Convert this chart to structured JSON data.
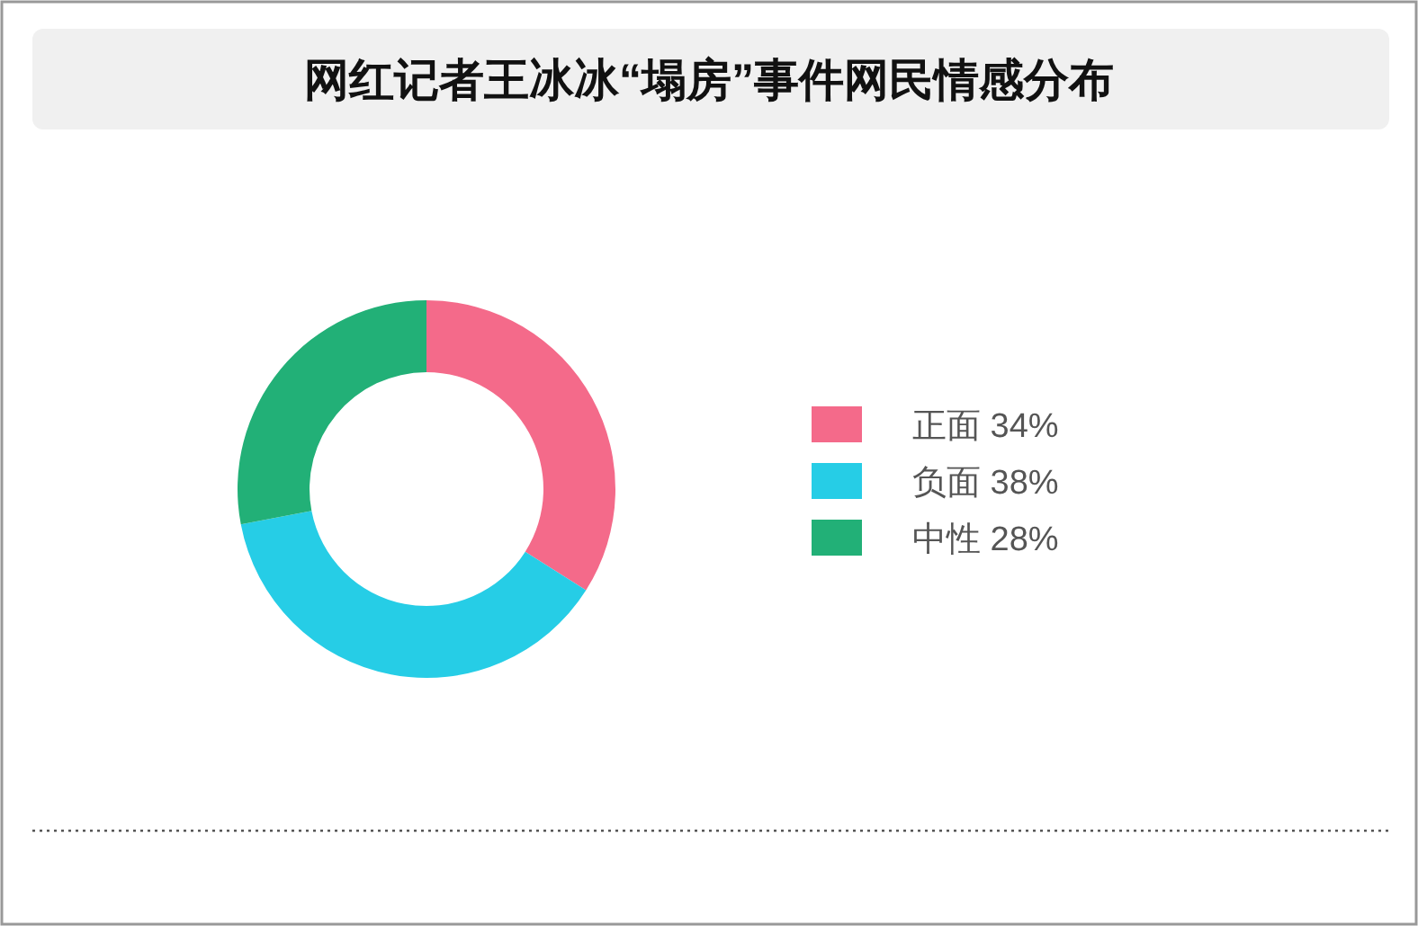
{
  "chart_data": {
    "type": "donut",
    "title": "网红记者王冰冰“塌房”事件网民情感分布",
    "categories": [
      "正面",
      "负面",
      "中性"
    ],
    "values": [
      34,
      38,
      28
    ],
    "colors": [
      "#f46a8a",
      "#26cde6",
      "#22b077"
    ],
    "value_labels": [
      "34%",
      "38%",
      "28%"
    ],
    "legend": "right"
  }
}
